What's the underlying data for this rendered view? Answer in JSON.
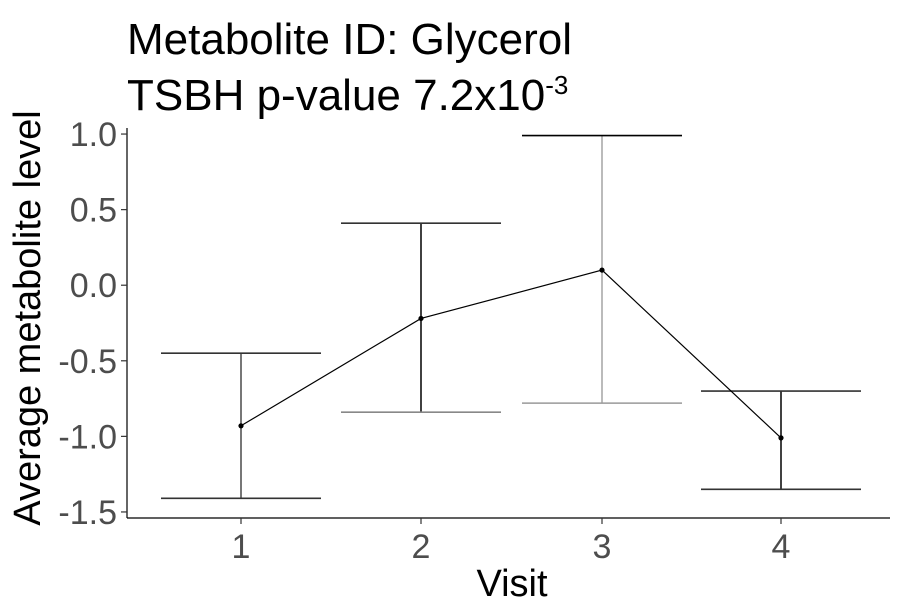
{
  "chart_data": {
    "type": "line",
    "title_line1": "Metabolite ID: Glycerol",
    "title_line2_prefix": "TSBH p-value 7.2x10",
    "title_line2_exponent": "-3",
    "xlabel": "Visit",
    "ylabel": "Average metabolite level",
    "categories": [
      "1",
      "2",
      "3",
      "4"
    ],
    "series": [
      {
        "values": [
          -0.93,
          -0.22,
          0.1,
          -1.01
        ],
        "lower": [
          -1.41,
          -0.84,
          -0.78,
          -1.35
        ],
        "upper": [
          -0.45,
          0.41,
          0.99,
          -0.7
        ]
      }
    ],
    "yticks": [
      1.0,
      0.5,
      0.0,
      -0.5,
      -1.0,
      -1.5
    ],
    "ytick_labels": [
      "1.0",
      "0.5",
      "0.0",
      "-0.5",
      "-1.0",
      "-1.5"
    ],
    "ylim": [
      -1.54,
      1.04
    ],
    "grid": false,
    "legend": "none"
  }
}
